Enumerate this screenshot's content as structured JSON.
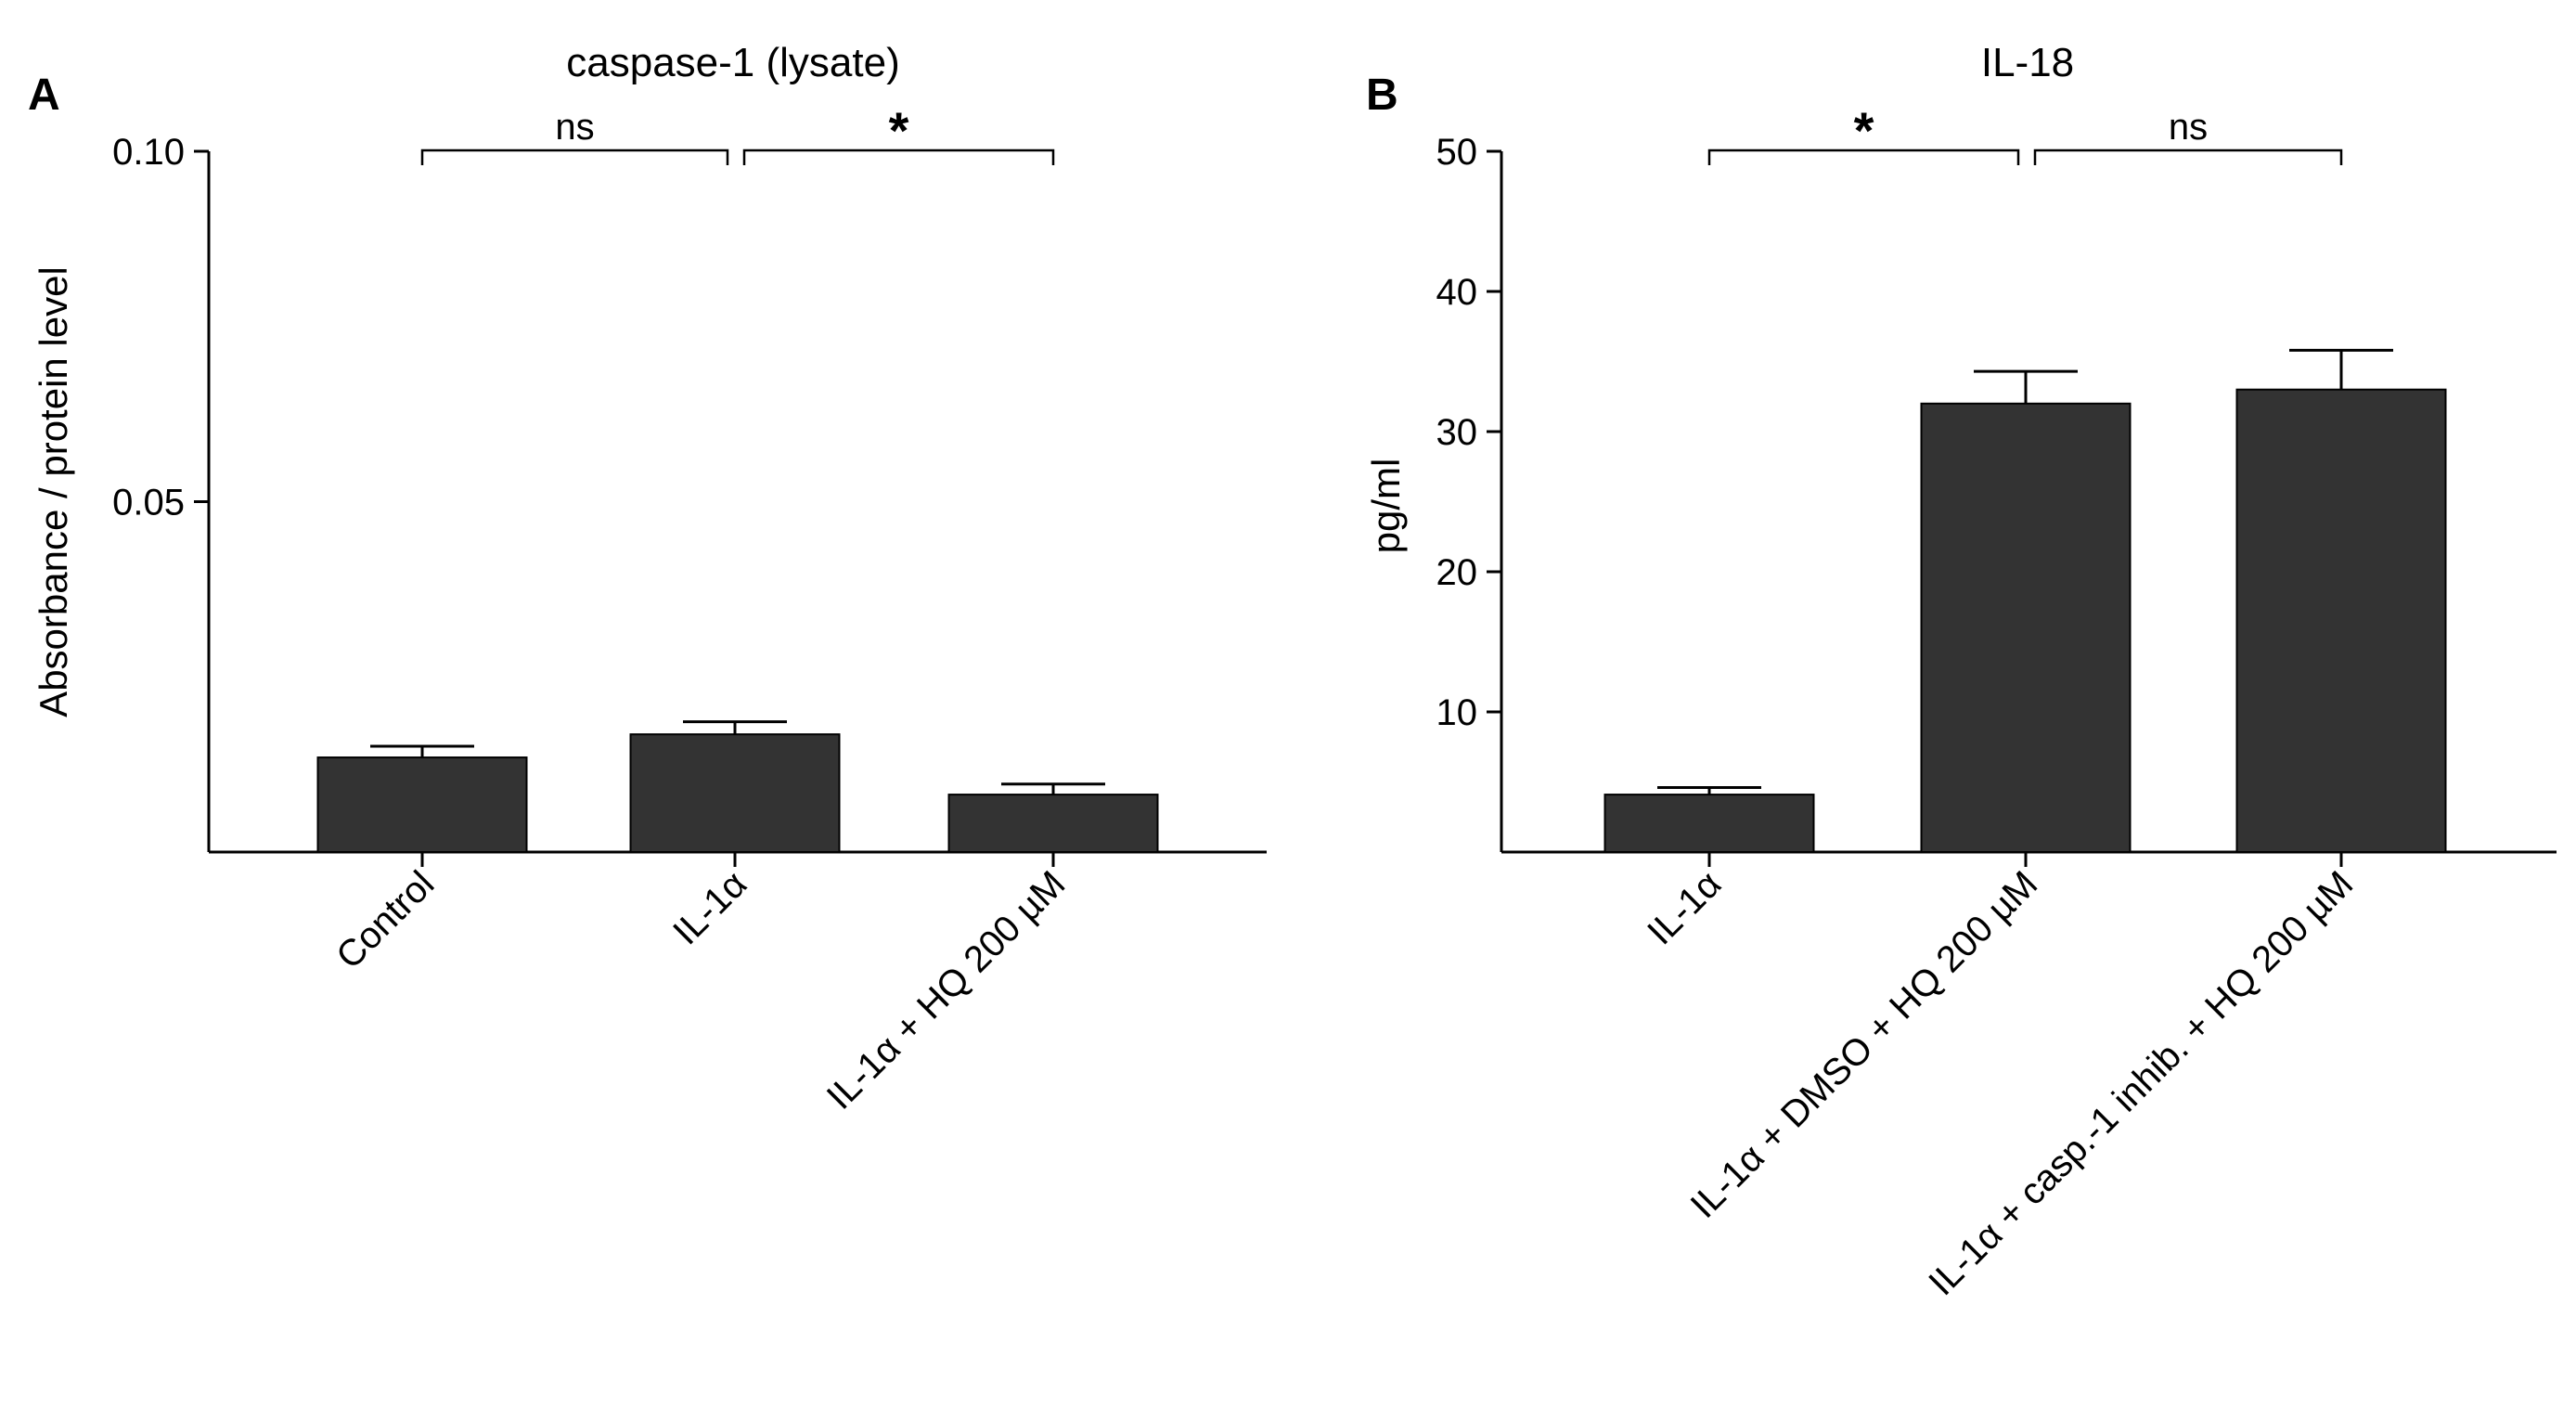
{
  "chart_data": [
    {
      "panel": "A",
      "type": "bar",
      "title": "caspase-1 (lysate)",
      "xlabel": "",
      "ylabel": "Absorbance / protein level",
      "ylim": [
        0,
        0.1
      ],
      "yticks": [
        {
          "value": 0.05,
          "label": "0.05"
        },
        {
          "value": 0.1,
          "label": "0.10"
        }
      ],
      "categories": [
        "Control",
        "IL-1α",
        "IL-1α + HQ 200 µM"
      ],
      "values": [
        0.0135,
        0.0168,
        0.0082
      ],
      "errors": [
        0.0016,
        0.0018,
        0.0015
      ],
      "significance": [
        {
          "from": 0,
          "to": 1,
          "label": "ns"
        },
        {
          "from": 1,
          "to": 2,
          "label": "*"
        }
      ],
      "colors": {
        "bar": "#333333",
        "axis": "#000000"
      }
    },
    {
      "panel": "B",
      "type": "bar",
      "title": "IL-18",
      "xlabel": "",
      "ylabel": "pg/ml",
      "ylim": [
        0,
        50
      ],
      "yticks": [
        {
          "value": 10,
          "label": "10"
        },
        {
          "value": 20,
          "label": "20"
        },
        {
          "value": 30,
          "label": "30"
        },
        {
          "value": 40,
          "label": "40"
        },
        {
          "value": 50,
          "label": "50"
        }
      ],
      "categories": [
        "IL-1α",
        "IL-1α + DMSO + HQ 200 µM",
        "IL-1α + casp.-1 inhib. + HQ 200 µM"
      ],
      "values": [
        4.1,
        32.0,
        33.0
      ],
      "errors": [
        0.5,
        2.3,
        2.8
      ],
      "significance": [
        {
          "from": 0,
          "to": 1,
          "label": "*"
        },
        {
          "from": 1,
          "to": 2,
          "label": "ns"
        }
      ],
      "colors": {
        "bar": "#333333",
        "axis": "#000000"
      }
    }
  ]
}
